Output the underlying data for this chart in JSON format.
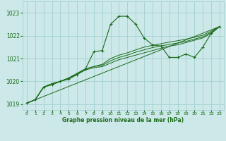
{
  "xlabel": "Graphe pression niveau de la mer (hPa)",
  "xlim": [
    -0.5,
    23.5
  ],
  "ylim": [
    1018.75,
    1023.5
  ],
  "yticks": [
    1019,
    1020,
    1021,
    1022,
    1023
  ],
  "xticks": [
    0,
    1,
    2,
    3,
    4,
    5,
    6,
    7,
    8,
    9,
    10,
    11,
    12,
    13,
    14,
    15,
    16,
    17,
    18,
    19,
    20,
    21,
    22,
    23
  ],
  "background_color": "#cce8e8",
  "grid_color": "#99cccc",
  "line_color": "#1a6b1a",
  "series_main": {
    "x": [
      0,
      1,
      2,
      3,
      4,
      5,
      6,
      7,
      8,
      9,
      10,
      11,
      12,
      13,
      14,
      15,
      16,
      17,
      18,
      19,
      20,
      21,
      22,
      23
    ],
    "y": [
      1019.05,
      1019.2,
      1019.75,
      1019.85,
      1020.0,
      1020.1,
      1020.3,
      1020.55,
      1021.3,
      1021.35,
      1022.5,
      1022.85,
      1022.85,
      1022.5,
      1021.9,
      1021.6,
      1021.55,
      1021.05,
      1021.05,
      1021.2,
      1021.05,
      1021.5,
      1022.1,
      1022.4
    ]
  },
  "series_envelope": [
    {
      "x": [
        0,
        1,
        2,
        3,
        4,
        5,
        6,
        7,
        8,
        9,
        10,
        11,
        12,
        13,
        14,
        15,
        16,
        17,
        18,
        19,
        20,
        21,
        22,
        23
      ],
      "y": [
        1019.05,
        1019.2,
        1019.75,
        1019.9,
        1020.0,
        1020.15,
        1020.3,
        1020.5,
        1020.6,
        1020.65,
        1020.8,
        1020.95,
        1021.05,
        1021.15,
        1021.25,
        1021.35,
        1021.45,
        1021.55,
        1021.6,
        1021.7,
        1021.8,
        1021.9,
        1022.1,
        1022.4
      ]
    },
    {
      "x": [
        0,
        1,
        2,
        3,
        4,
        5,
        6,
        7,
        8,
        9,
        10,
        11,
        12,
        13,
        14,
        15,
        16,
        17,
        18,
        19,
        20,
        21,
        22,
        23
      ],
      "y": [
        1019.05,
        1019.2,
        1019.75,
        1019.9,
        1020.0,
        1020.15,
        1020.35,
        1020.55,
        1020.65,
        1020.7,
        1020.9,
        1021.05,
        1021.15,
        1021.28,
        1021.38,
        1021.48,
        1021.55,
        1021.62,
        1021.68,
        1021.75,
        1021.85,
        1021.95,
        1022.15,
        1022.4
      ]
    },
    {
      "x": [
        0,
        1,
        2,
        3,
        4,
        5,
        6,
        7,
        8,
        9,
        10,
        11,
        12,
        13,
        14,
        15,
        16,
        17,
        18,
        19,
        20,
        21,
        22,
        23
      ],
      "y": [
        1019.05,
        1019.2,
        1019.75,
        1019.9,
        1020.0,
        1020.15,
        1020.35,
        1020.55,
        1020.65,
        1020.75,
        1021.0,
        1021.15,
        1021.25,
        1021.38,
        1021.5,
        1021.58,
        1021.65,
        1021.72,
        1021.78,
        1021.85,
        1021.93,
        1022.02,
        1022.2,
        1022.4
      ]
    }
  ],
  "series_linear": {
    "x": [
      0,
      23
    ],
    "y": [
      1019.05,
      1022.4
    ]
  }
}
